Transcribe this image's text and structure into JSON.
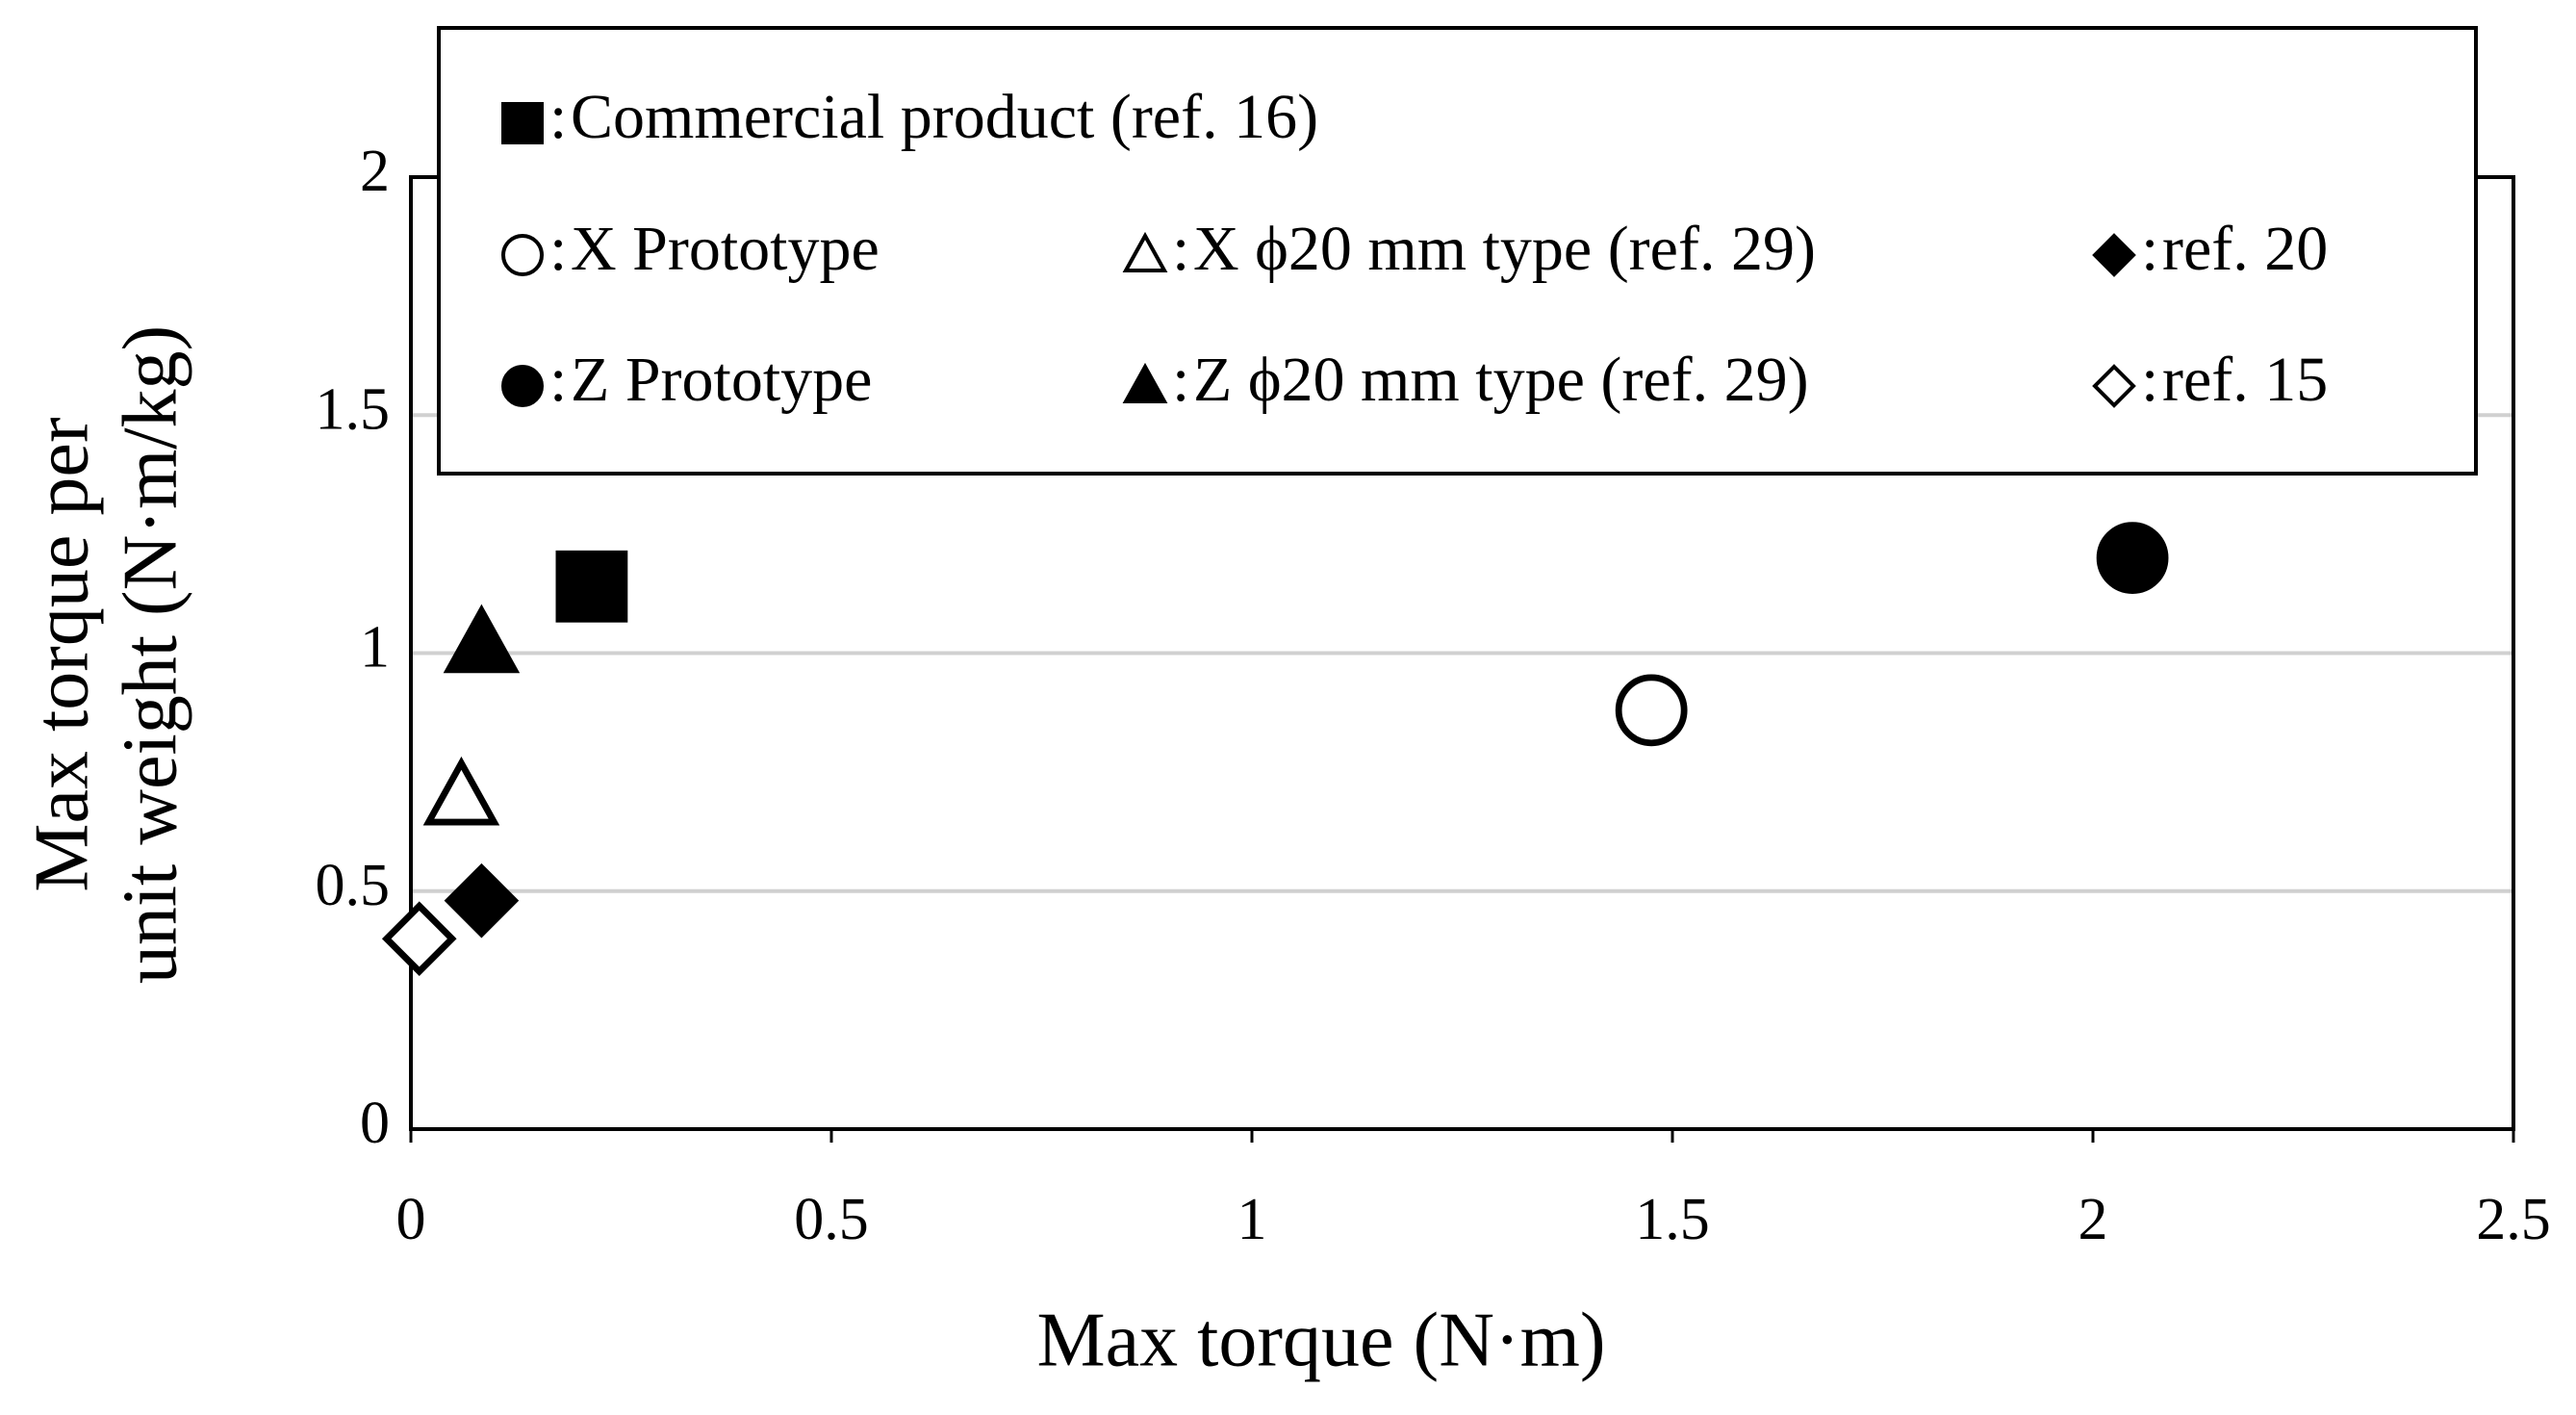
{
  "chart_data": {
    "type": "scatter",
    "xlabel": "Max torque (N·m)",
    "ylabel": [
      "Max torque per",
      "unit weight (N·m/kg)"
    ],
    "legend_separator": ":",
    "xlim": [
      0,
      2.5
    ],
    "xticks": [
      0,
      0.5,
      1,
      1.5,
      2,
      2.5
    ],
    "ylim": [
      0,
      2
    ],
    "yticks": [
      0,
      0.5,
      1,
      1.5,
      2
    ],
    "grid": true,
    "legend": "top",
    "series": [
      {
        "name": "Commercial product (ref. 16)",
        "marker": "square",
        "filled": true,
        "color": "#000000",
        "x": [
          0.215
        ],
        "values": [
          1.14
        ]
      },
      {
        "name": "X Prototype",
        "marker": "circle",
        "filled": false,
        "color": "#000000",
        "x": [
          1.475
        ],
        "values": [
          0.88
        ]
      },
      {
        "name": "X ϕ20 mm type (ref. 29)",
        "marker": "triangle",
        "filled": false,
        "color": "#000000",
        "x": [
          0.06
        ],
        "values": [
          0.7
        ]
      },
      {
        "name": "ref. 20",
        "marker": "diamond",
        "filled": true,
        "color": "#000000",
        "x": [
          0.084
        ],
        "values": [
          0.48
        ]
      },
      {
        "name": "Z Prototype",
        "marker": "circle",
        "filled": true,
        "color": "#000000",
        "x": [
          2.047
        ],
        "values": [
          1.2
        ]
      },
      {
        "name": "Z ϕ20 mm type (ref. 29)",
        "marker": "triangle",
        "filled": true,
        "color": "#000000",
        "x": [
          0.084
        ],
        "values": [
          1.02
        ]
      },
      {
        "name": "ref. 15",
        "marker": "diamond",
        "filled": false,
        "color": "#000000",
        "x": [
          0.01
        ],
        "values": [
          0.4
        ]
      }
    ]
  }
}
